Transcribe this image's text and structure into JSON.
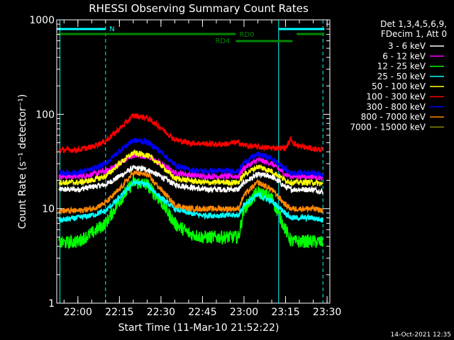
{
  "chart_data": {
    "type": "line",
    "title": "RHESSI Observing Summary Count Rates",
    "xlabel": "Start Time (11-Mar-10 21:52:22)",
    "ylabel": "Count Rate (s⁻¹ detector⁻¹)",
    "yscale": "log",
    "ylim": [
      1,
      1000
    ],
    "xlim": [
      "21:52:22",
      "23:31:00"
    ],
    "x_ticks": [
      "22:00",
      "22:15",
      "22:30",
      "22:45",
      "23:00",
      "23:15",
      "23:30"
    ],
    "y_ticks": [
      "1",
      "10",
      "100",
      "1000"
    ],
    "legend_position": "top-right",
    "legend_header": [
      "Det 1,3,4,5,6,9,",
      "FDecim 1, Att 0"
    ],
    "flags": [
      {
        "label": "N",
        "color": "#00ffff",
        "ranges": [
          [
            "21:52:22",
            "22:10:00"
          ],
          [
            "23:12:30",
            "23:29:00"
          ]
        ]
      },
      {
        "label": "RD0",
        "color": "#008800",
        "ranges": [
          [
            "21:52:22",
            "22:57:00"
          ],
          [
            "23:19:00",
            "23:29:00"
          ]
        ]
      },
      {
        "label": "RD4",
        "color": "#008800",
        "ranges": [
          [
            "22:57:00",
            "23:17:30"
          ]
        ]
      }
    ],
    "boundaries": {
      "solid": [
        "21:53:30",
        "23:12:30"
      ],
      "dashed": [
        "22:10:00",
        "23:28:30"
      ]
    },
    "times": [
      "21:53",
      "22:00",
      "22:05",
      "22:10",
      "22:15",
      "22:20",
      "22:25",
      "22:30",
      "22:35",
      "22:40",
      "22:45",
      "22:50",
      "22:55",
      "22:56",
      "22:58",
      "23:00",
      "23:05",
      "23:10",
      "23:15",
      "23:17",
      "23:18",
      "23:20",
      "23:25",
      "23:29"
    ],
    "series": [
      {
        "name": "3 - 6 keV",
        "color": "#ffffff",
        "values": [
          16,
          16,
          17,
          18,
          22,
          27,
          26,
          22,
          18,
          17,
          16,
          16,
          16,
          16,
          16,
          19,
          23,
          22,
          17,
          16,
          16,
          16,
          16,
          15
        ]
      },
      {
        "name": "6 - 12 keV",
        "color": "#ff00ff",
        "values": [
          22,
          22,
          23,
          25,
          30,
          37,
          36,
          30,
          24,
          23,
          22,
          22,
          22,
          22,
          22,
          27,
          33,
          30,
          23,
          22,
          22,
          22,
          22,
          21
        ]
      },
      {
        "name": "12 - 25 keV",
        "color": "#00ff00",
        "values": [
          4.3,
          4.5,
          5.5,
          7,
          12,
          19,
          18,
          12,
          7,
          5.5,
          5,
          5,
          5,
          5,
          5,
          10,
          15,
          13,
          6,
          4.5,
          4.5,
          4.5,
          4.5,
          4.4
        ]
      },
      {
        "name": "25 - 50 keV",
        "color": "#00ffff",
        "values": [
          7.5,
          8,
          8.5,
          9.5,
          13,
          19,
          18,
          13,
          10,
          9,
          8.5,
          8.5,
          8.5,
          8.5,
          8.5,
          11,
          14,
          12,
          9,
          8,
          8,
          8,
          8,
          7.5
        ]
      },
      {
        "name": "50 - 100 keV",
        "color": "#ffff00",
        "values": [
          19,
          19,
          20,
          22,
          30,
          39,
          37,
          29,
          21,
          20,
          19,
          19,
          19,
          19,
          19,
          23,
          28,
          25,
          20,
          19,
          19,
          19,
          19,
          18
        ]
      },
      {
        "name": "100 - 300 keV",
        "color": "#ff0000",
        "values": [
          42,
          42,
          45,
          52,
          70,
          97,
          92,
          72,
          54,
          50,
          49,
          48,
          49,
          50,
          50,
          47,
          45,
          44,
          44,
          55,
          49,
          46,
          43,
          42
        ]
      },
      {
        "name": "300 - 800 keV",
        "color": "#0000ff",
        "values": [
          24,
          24,
          26,
          30,
          41,
          53,
          51,
          40,
          29,
          26,
          25,
          25,
          25,
          25,
          25,
          31,
          38,
          34,
          26,
          24,
          24,
          24,
          24,
          23
        ]
      },
      {
        "name": "800 - 7000 keV",
        "color": "#ff8800",
        "values": [
          9.5,
          9.5,
          10,
          11.5,
          16,
          24,
          23,
          16,
          11,
          10,
          10,
          10,
          10,
          10,
          10,
          14,
          19,
          16,
          11,
          10,
          10,
          10,
          10,
          9.5
        ]
      },
      {
        "name": "7000 - 15000 keV",
        "color": "#888800",
        "values": []
      }
    ],
    "footer_date": "14-Oct-2021 12:35"
  }
}
